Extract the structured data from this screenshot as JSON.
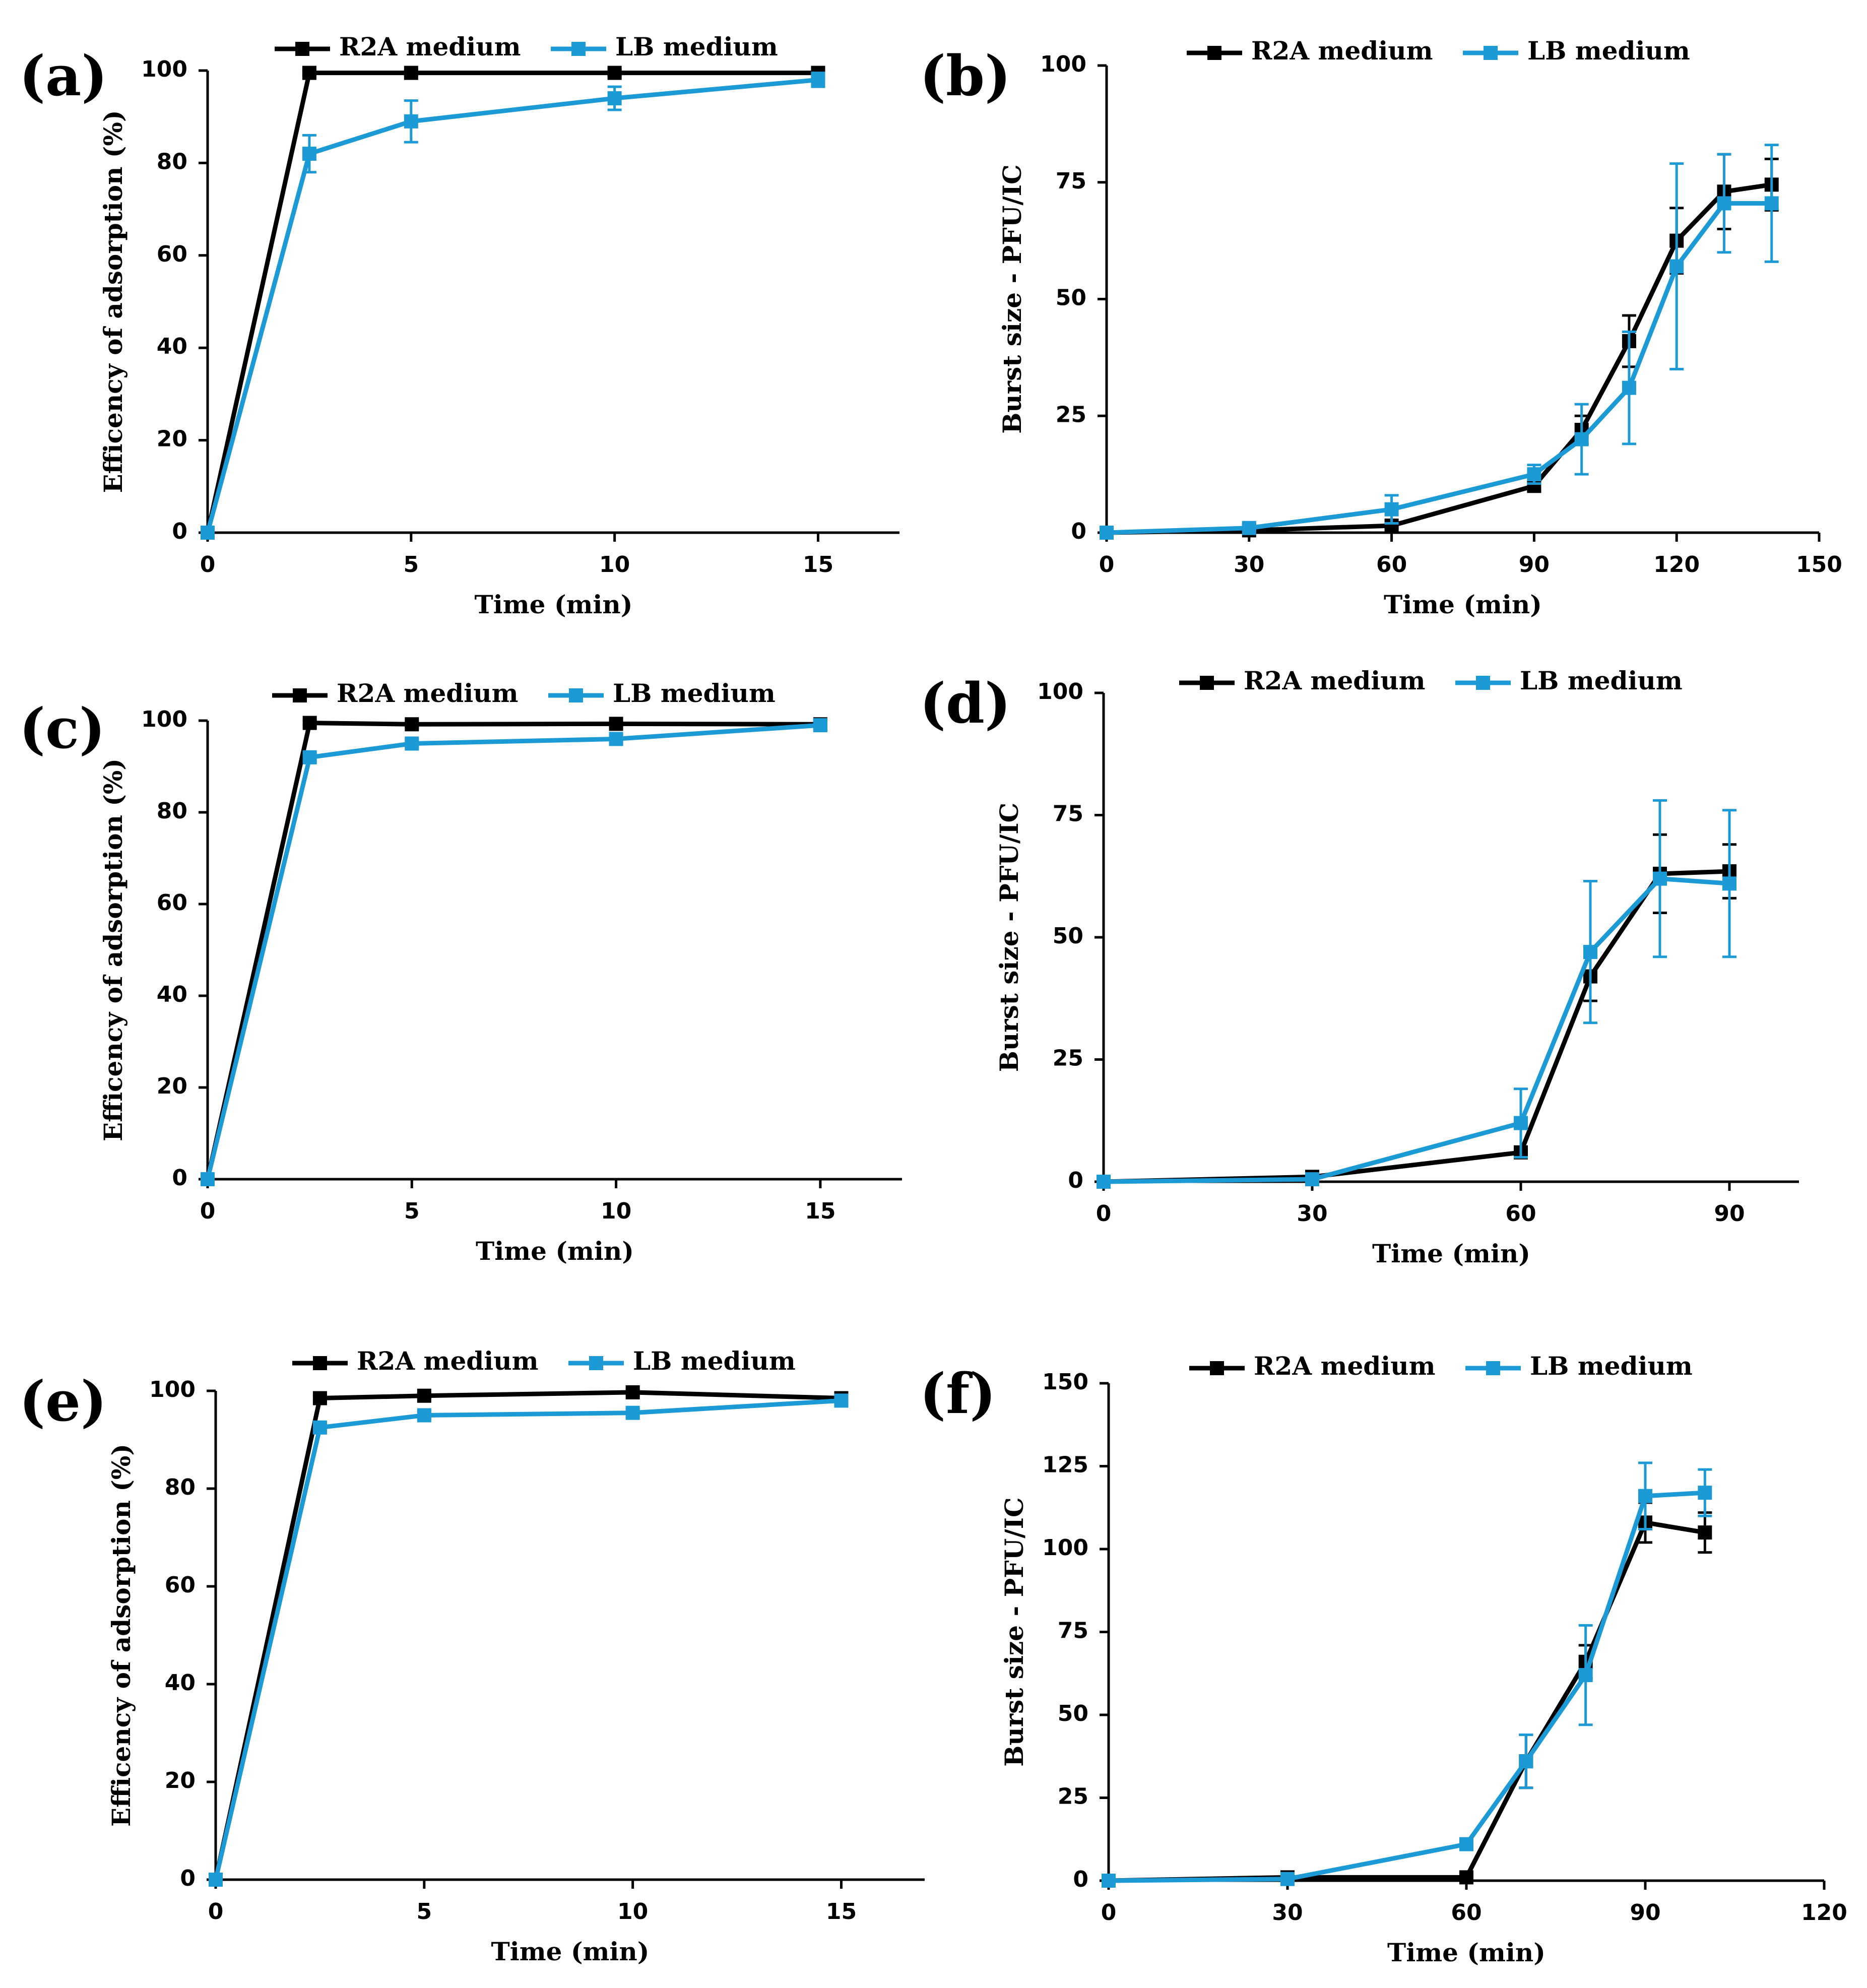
{
  "figure": {
    "colors": {
      "r2a": "#000000",
      "lb": "#1b9ad6"
    }
  },
  "chart_data": [
    {
      "panel": "(a)",
      "type": "line",
      "xlabel": "Time (min)",
      "ylabel": "Efficency of adsorption (%)",
      "xlim": [
        0,
        17
      ],
      "ylim": [
        0,
        100
      ],
      "xticks": [
        0,
        5,
        10,
        15
      ],
      "yticks": [
        0,
        20,
        40,
        60,
        80,
        100
      ],
      "legend_position": "top-center",
      "series": [
        {
          "name": "R2A medium",
          "color": "#000000",
          "x": [
            0,
            2.5,
            5,
            10,
            15
          ],
          "y": [
            0,
            99.5,
            99.5,
            99.5,
            99.5
          ],
          "err": [
            0,
            0.5,
            0.5,
            0.5,
            1
          ]
        },
        {
          "name": "LB medium",
          "color": "#1b9ad6",
          "x": [
            0,
            2.5,
            5,
            10,
            15
          ],
          "y": [
            0,
            82,
            89,
            94,
            98
          ],
          "err": [
            0,
            4,
            4.5,
            2.5,
            1.5
          ]
        }
      ]
    },
    {
      "panel": "(b)",
      "type": "line",
      "xlabel": "Time (min)",
      "ylabel": "Burst size - PFU/IC",
      "xlim": [
        0,
        150
      ],
      "ylim": [
        0,
        100
      ],
      "xticks": [
        0,
        30,
        60,
        90,
        120,
        150
      ],
      "yticks": [
        0,
        25,
        50,
        75,
        100
      ],
      "legend_position": "top-center",
      "series": [
        {
          "name": "R2A medium",
          "color": "#000000",
          "x": [
            0,
            30,
            60,
            90,
            100,
            110,
            120,
            130,
            140
          ],
          "y": [
            0,
            0.5,
            1.5,
            10,
            22,
            41,
            62.5,
            73,
            74.5
          ],
          "err": [
            0,
            0.3,
            0.5,
            1,
            3,
            5.5,
            7,
            8,
            5.5
          ]
        },
        {
          "name": "LB medium",
          "color": "#1b9ad6",
          "x": [
            0,
            30,
            60,
            90,
            100,
            110,
            120,
            130,
            140
          ],
          "y": [
            0,
            1,
            5,
            12.5,
            20,
            31,
            57,
            70.5,
            70.5
          ],
          "err": [
            0,
            0.5,
            3,
            2,
            7.5,
            12,
            22,
            10.5,
            12.5
          ]
        }
      ]
    },
    {
      "panel": "(c)",
      "type": "line",
      "xlabel": "Time (min)",
      "ylabel": "Efficency of adsorption (%)",
      "xlim": [
        0,
        17
      ],
      "ylim": [
        0,
        100
      ],
      "xticks": [
        0,
        5,
        10,
        15
      ],
      "yticks": [
        0,
        20,
        40,
        60,
        80,
        100
      ],
      "legend_position": "top-center",
      "series": [
        {
          "name": "R2A medium",
          "color": "#000000",
          "x": [
            0,
            2.5,
            5,
            10,
            15
          ],
          "y": [
            0,
            99.5,
            99.2,
            99.3,
            99.2
          ],
          "err": [
            0,
            0.5,
            0.5,
            0.5,
            0.5
          ]
        },
        {
          "name": "LB medium",
          "color": "#1b9ad6",
          "x": [
            0,
            2.5,
            5,
            10,
            15
          ],
          "y": [
            0,
            92,
            95,
            96,
            99
          ],
          "err": [
            0,
            0.8,
            0.8,
            0.8,
            0.5
          ]
        }
      ]
    },
    {
      "panel": "(d)",
      "type": "line",
      "xlabel": "Time (min)",
      "ylabel": "Burst size - PFU/IC",
      "xlim": [
        0,
        100
      ],
      "ylim": [
        0,
        100
      ],
      "xticks": [
        0,
        30,
        60,
        90
      ],
      "yticks": [
        0,
        25,
        50,
        75,
        100
      ],
      "legend_position": "top-center",
      "series": [
        {
          "name": "R2A medium",
          "color": "#000000",
          "x": [
            0,
            30,
            60,
            70,
            80,
            90
          ],
          "y": [
            0,
            1,
            6,
            42,
            63,
            63.5
          ],
          "err": [
            0,
            0.3,
            1,
            5,
            8,
            5.5
          ]
        },
        {
          "name": "LB medium",
          "color": "#1b9ad6",
          "x": [
            0,
            30,
            60,
            70,
            80,
            90
          ],
          "y": [
            0,
            0.5,
            12,
            47,
            62,
            61
          ],
          "err": [
            0,
            0.3,
            7,
            14.5,
            16,
            15
          ]
        }
      ]
    },
    {
      "panel": "(e)",
      "type": "line",
      "xlabel": "Time (min)",
      "ylabel": "Efficency of adsorption (%)",
      "xlim": [
        0,
        17
      ],
      "ylim": [
        0,
        100
      ],
      "xticks": [
        0,
        5,
        10,
        15
      ],
      "yticks": [
        0,
        20,
        40,
        60,
        80,
        100
      ],
      "legend_position": "top-center",
      "series": [
        {
          "name": "R2A medium",
          "color": "#000000",
          "x": [
            0,
            2.5,
            5,
            10,
            15
          ],
          "y": [
            0,
            98.5,
            99,
            99.7,
            98.5
          ],
          "err": [
            0,
            0.5,
            0.5,
            0.5,
            0.5
          ]
        },
        {
          "name": "LB medium",
          "color": "#1b9ad6",
          "x": [
            0,
            2.5,
            5,
            10,
            15
          ],
          "y": [
            0,
            92.5,
            95,
            95.5,
            98
          ],
          "err": [
            0,
            0.8,
            0.8,
            0.8,
            0.6
          ]
        }
      ]
    },
    {
      "panel": "(f)",
      "type": "line",
      "xlabel": "Time (min)",
      "ylabel": "Burst size - PFU/IC",
      "xlim": [
        0,
        120
      ],
      "ylim": [
        0,
        150
      ],
      "xticks": [
        0,
        30,
        60,
        90,
        120
      ],
      "yticks": [
        0,
        25,
        50,
        75,
        100,
        125,
        150
      ],
      "legend_position": "top-center",
      "series": [
        {
          "name": "R2A medium",
          "color": "#000000",
          "x": [
            0,
            30,
            60,
            70,
            80,
            90,
            100
          ],
          "y": [
            0,
            1,
            1,
            36,
            66,
            108,
            105
          ],
          "err": [
            0,
            0.5,
            0.5,
            8,
            5,
            6,
            6
          ]
        },
        {
          "name": "LB medium",
          "color": "#1b9ad6",
          "x": [
            0,
            30,
            60,
            70,
            80,
            90,
            100
          ],
          "y": [
            0,
            0.5,
            11,
            36,
            62,
            116,
            117
          ],
          "err": [
            0,
            0.3,
            1.5,
            8,
            15,
            10,
            7
          ]
        }
      ]
    }
  ]
}
